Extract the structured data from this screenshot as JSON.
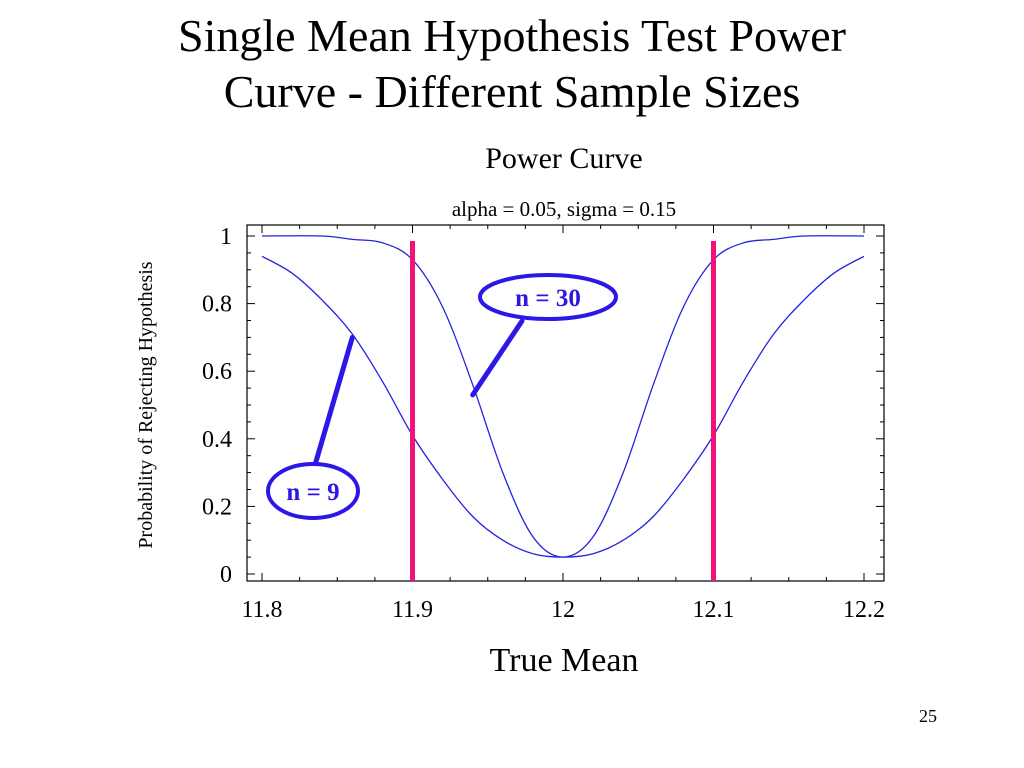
{
  "slide": {
    "title_line1": "Single Mean Hypothesis Test Power",
    "title_line2": "Curve - Different Sample Sizes",
    "page_number": "25"
  },
  "chart_data": {
    "type": "line",
    "title": "Power Curve",
    "subtitle": "alpha = 0.05, sigma = 0.15",
    "xlabel": "True Mean",
    "ylabel": "Probability of Rejecting Hypothesis",
    "xlim": [
      11.8,
      12.2
    ],
    "ylim": [
      0,
      1
    ],
    "x_ticks": [
      "11.8",
      "11.9",
      "12",
      "12.1",
      "12.2"
    ],
    "y_ticks": [
      "0",
      "0.2",
      "0.4",
      "0.6",
      "0.8",
      "1"
    ],
    "grid": false,
    "series": [
      {
        "name": "n = 9",
        "x": [
          11.8,
          11.82,
          11.84,
          11.86,
          11.88,
          11.9,
          11.92,
          11.94,
          11.96,
          11.98,
          12.0,
          12.02,
          12.04,
          12.06,
          12.08,
          12.1,
          12.12,
          12.14,
          12.16,
          12.18,
          12.2
        ],
        "values": [
          0.94,
          0.89,
          0.81,
          0.71,
          0.57,
          0.41,
          0.28,
          0.17,
          0.1,
          0.06,
          0.05,
          0.06,
          0.1,
          0.17,
          0.28,
          0.41,
          0.57,
          0.71,
          0.81,
          0.89,
          0.94
        ]
      },
      {
        "name": "n = 30",
        "x": [
          11.8,
          11.84,
          11.86,
          11.88,
          11.9,
          11.92,
          11.94,
          11.96,
          11.98,
          12.0,
          12.02,
          12.04,
          12.06,
          12.08,
          12.1,
          12.12,
          12.14,
          12.16,
          12.2
        ],
        "values": [
          1.0,
          1.0,
          0.99,
          0.98,
          0.93,
          0.79,
          0.56,
          0.3,
          0.11,
          0.05,
          0.11,
          0.3,
          0.56,
          0.79,
          0.93,
          0.98,
          0.99,
          1.0,
          1.0
        ]
      }
    ],
    "reference_lines": [
      11.9,
      12.1
    ],
    "annotations": [
      {
        "text": "n = 9",
        "points_to": {
          "x": 11.86,
          "y": 0.7
        }
      },
      {
        "text": "n = 30",
        "points_to": {
          "x": 11.94,
          "y": 0.53
        }
      }
    ],
    "colors": {
      "curve": "#2424e0",
      "reference_line": "#f0147a",
      "annotation": "#2c17e6",
      "axis": "#000000"
    }
  }
}
